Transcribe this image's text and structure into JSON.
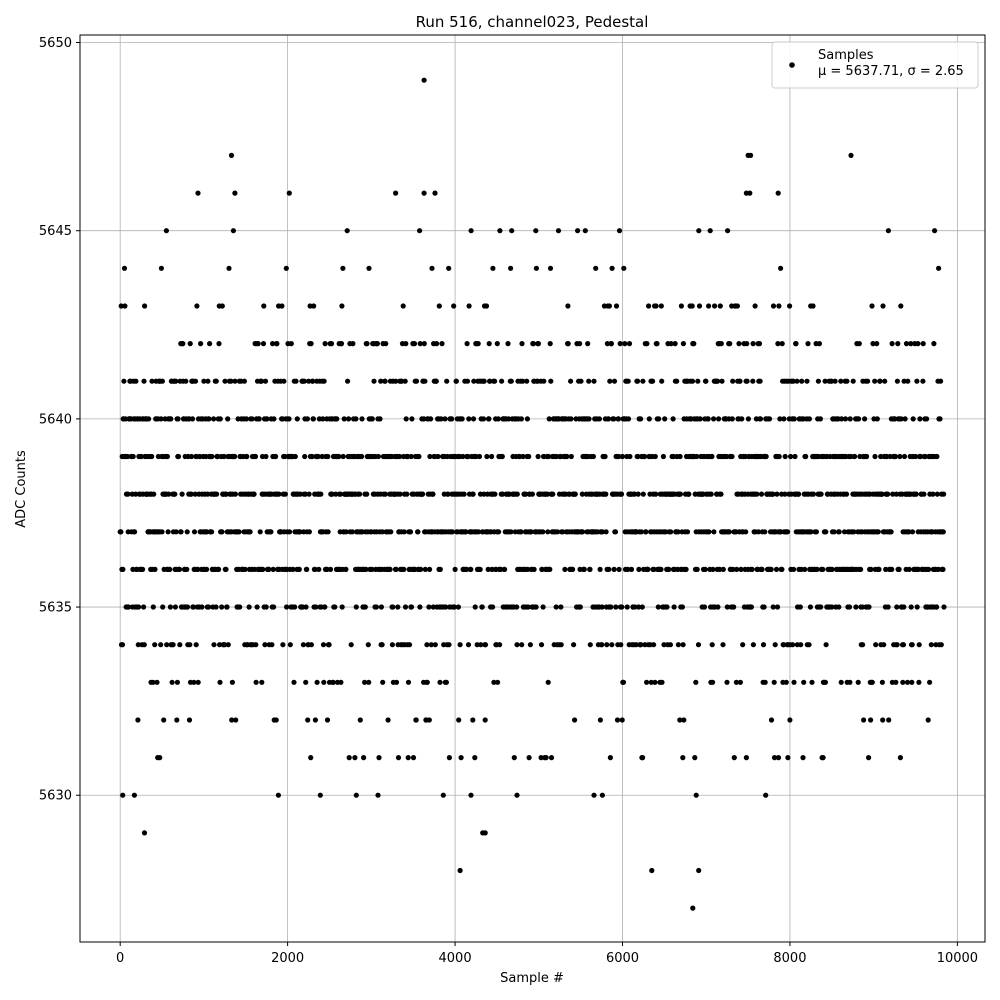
{
  "chart_data": {
    "type": "scatter",
    "title": "Run 516, channel023, Pedestal",
    "xlabel": "Sample #",
    "ylabel": "ADC Counts",
    "xlim": [
      -480,
      10330
    ],
    "ylim": [
      5626.1,
      5650.2
    ],
    "xticks": [
      0,
      2000,
      4000,
      6000,
      8000,
      10000
    ],
    "xtick_labels": [
      "0",
      "2000",
      "4000",
      "6000",
      "8000",
      "10000"
    ],
    "yticks": [
      5630,
      5635,
      5640,
      5645,
      5650
    ],
    "ytick_labels": [
      "5630",
      "5635",
      "5640",
      "5645",
      "5650"
    ],
    "grid": true,
    "legend": {
      "placement": "top-right",
      "label": "Samples",
      "stats": "μ = 5637.71, σ = 2.65"
    },
    "marker_color": "#000000",
    "series": [
      {
        "name": "Samples",
        "x_range": [
          0,
          9840
        ],
        "n_samples": 9841,
        "mean": 5637.71,
        "sigma": 2.65,
        "outliers": [
          {
            "x": 3630,
            "y": 5649
          },
          {
            "x": 1330,
            "y": 5647
          },
          {
            "x": 7500,
            "y": 5647
          },
          {
            "x": 7530,
            "y": 5647
          },
          {
            "x": 8730,
            "y": 5647
          },
          {
            "x": 930,
            "y": 5646
          },
          {
            "x": 1370,
            "y": 5646
          },
          {
            "x": 2020,
            "y": 5646
          },
          {
            "x": 3290,
            "y": 5646
          },
          {
            "x": 3630,
            "y": 5646
          },
          {
            "x": 3760,
            "y": 5646
          },
          {
            "x": 7480,
            "y": 5646
          },
          {
            "x": 7520,
            "y": 5646
          },
          {
            "x": 7860,
            "y": 5646
          },
          {
            "x": 30,
            "y": 5630
          },
          {
            "x": 170,
            "y": 5630
          },
          {
            "x": 1890,
            "y": 5630
          },
          {
            "x": 2390,
            "y": 5630
          },
          {
            "x": 2820,
            "y": 5630
          },
          {
            "x": 3080,
            "y": 5630
          },
          {
            "x": 3860,
            "y": 5630
          },
          {
            "x": 4190,
            "y": 5630
          },
          {
            "x": 4740,
            "y": 5630
          },
          {
            "x": 5660,
            "y": 5630
          },
          {
            "x": 5760,
            "y": 5630
          },
          {
            "x": 6880,
            "y": 5630
          },
          {
            "x": 7710,
            "y": 5630
          },
          {
            "x": 290,
            "y": 5629
          },
          {
            "x": 4330,
            "y": 5629
          },
          {
            "x": 4360,
            "y": 5629
          },
          {
            "x": 4060,
            "y": 5628
          },
          {
            "x": 6350,
            "y": 5628
          },
          {
            "x": 6910,
            "y": 5628
          },
          {
            "x": 6840,
            "y": 5627
          }
        ]
      }
    ]
  }
}
